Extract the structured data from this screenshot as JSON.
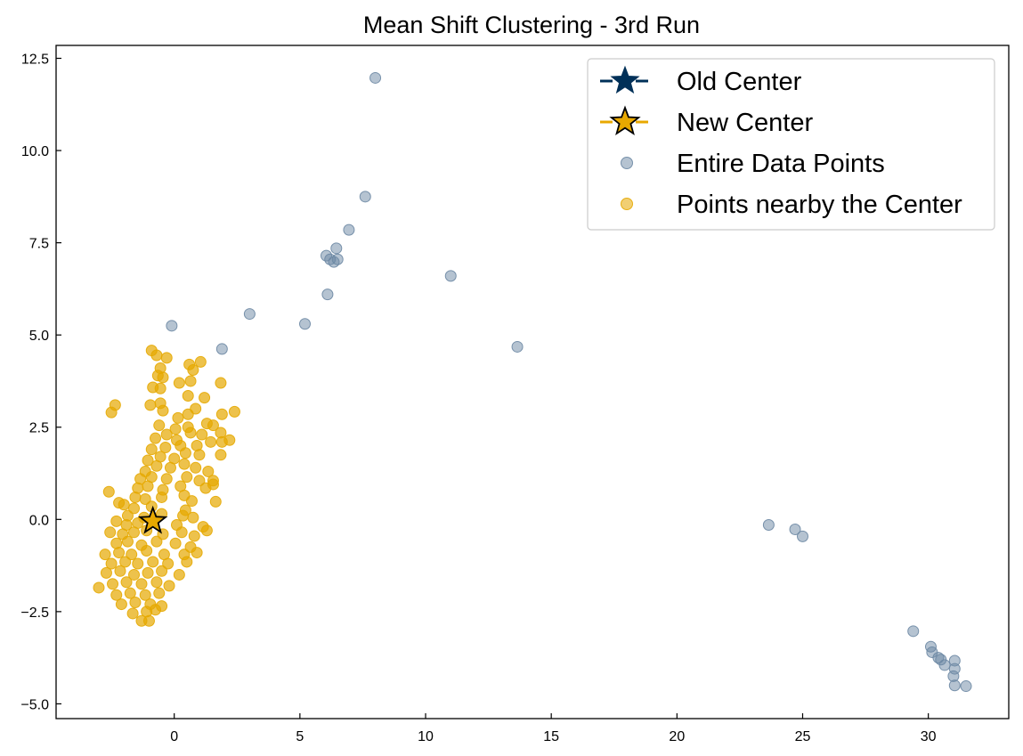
{
  "chart_data": {
    "type": "scatter",
    "title": "Mean Shift Clustering - 3rd Run",
    "xlabel": "",
    "ylabel": "",
    "xlim": [
      -4.7,
      33.2
    ],
    "ylim": [
      -5.4,
      12.85
    ],
    "xticks": [
      0,
      5,
      10,
      15,
      20,
      25,
      30
    ],
    "yticks": [
      -5.0,
      -2.5,
      0.0,
      2.5,
      5.0,
      7.5,
      10.0,
      12.5
    ],
    "xtick_labels": [
      "0",
      "5",
      "10",
      "15",
      "20",
      "25",
      "30"
    ],
    "ytick_labels": [
      "−5.0",
      "−2.5",
      "0.0",
      "2.5",
      "5.0",
      "7.5",
      "10.0",
      "12.5"
    ],
    "grid": false,
    "legend_position": "top-right",
    "colors": {
      "entire": "#6b87a3",
      "nearby": "#e6a800",
      "old_center": "#003058",
      "new_center": "#e8a800",
      "edge": "#000000"
    },
    "legend": [
      {
        "label": "Old Center",
        "marker": "star-line",
        "color": "#003058"
      },
      {
        "label": "New Center",
        "marker": "star-line-outlined",
        "color": "#e8a800"
      },
      {
        "label": "Entire Data Points",
        "marker": "circle",
        "color": "#6b87a3"
      },
      {
        "label": "Points nearby the Center",
        "marker": "circle",
        "color": "#e6a800"
      }
    ],
    "series": [
      {
        "name": "Entire Data Points",
        "points": [
          [
            -0.1,
            5.25
          ],
          [
            1.9,
            4.62
          ],
          [
            3.0,
            5.57
          ],
          [
            5.2,
            5.3
          ],
          [
            6.1,
            6.1
          ],
          [
            6.05,
            7.15
          ],
          [
            6.2,
            7.05
          ],
          [
            6.35,
            6.98
          ],
          [
            6.5,
            7.05
          ],
          [
            6.45,
            7.35
          ],
          [
            6.95,
            7.85
          ],
          [
            7.6,
            8.75
          ],
          [
            8.0,
            11.97
          ],
          [
            11.0,
            6.6
          ],
          [
            13.65,
            4.68
          ],
          [
            23.65,
            -0.15
          ],
          [
            24.7,
            -0.27
          ],
          [
            25.0,
            -0.46
          ],
          [
            29.4,
            -3.03
          ],
          [
            30.1,
            -3.45
          ],
          [
            30.15,
            -3.6
          ],
          [
            30.4,
            -3.75
          ],
          [
            30.5,
            -3.8
          ],
          [
            30.65,
            -3.95
          ],
          [
            31.05,
            -3.83
          ],
          [
            31.05,
            -4.05
          ],
          [
            31.0,
            -4.25
          ],
          [
            31.05,
            -4.5
          ],
          [
            31.5,
            -4.52
          ]
        ]
      },
      {
        "name": "Points nearby the Center",
        "points": [
          [
            -0.9,
            4.58
          ],
          [
            -0.7,
            4.45
          ],
          [
            -0.3,
            4.38
          ],
          [
            -0.55,
            4.1
          ],
          [
            -0.65,
            3.9
          ],
          [
            -0.45,
            3.85
          ],
          [
            0.6,
            4.2
          ],
          [
            0.75,
            4.05
          ],
          [
            1.05,
            4.27
          ],
          [
            -0.85,
            3.58
          ],
          [
            -0.55,
            3.55
          ],
          [
            0.2,
            3.7
          ],
          [
            0.65,
            3.75
          ],
          [
            1.85,
            3.7
          ],
          [
            -0.95,
            3.1
          ],
          [
            -0.55,
            3.15
          ],
          [
            0.55,
            3.35
          ],
          [
            1.2,
            3.3
          ],
          [
            -2.35,
            3.1
          ],
          [
            -2.5,
            2.9
          ],
          [
            -0.45,
            2.95
          ],
          [
            0.15,
            2.75
          ],
          [
            0.55,
            2.85
          ],
          [
            0.85,
            3.0
          ],
          [
            2.4,
            2.92
          ],
          [
            1.9,
            2.85
          ],
          [
            -0.6,
            2.55
          ],
          [
            0.05,
            2.45
          ],
          [
            0.55,
            2.5
          ],
          [
            1.3,
            2.6
          ],
          [
            1.55,
            2.55
          ],
          [
            -0.75,
            2.2
          ],
          [
            -0.3,
            2.3
          ],
          [
            0.1,
            2.15
          ],
          [
            0.65,
            2.35
          ],
          [
            1.1,
            2.3
          ],
          [
            1.85,
            2.35
          ],
          [
            2.2,
            2.15
          ],
          [
            -0.9,
            1.9
          ],
          [
            -0.35,
            1.95
          ],
          [
            0.25,
            2.0
          ],
          [
            0.9,
            2.0
          ],
          [
            1.45,
            2.1
          ],
          [
            1.9,
            2.1
          ],
          [
            -1.05,
            1.6
          ],
          [
            -0.55,
            1.7
          ],
          [
            0.0,
            1.65
          ],
          [
            0.45,
            1.8
          ],
          [
            1.0,
            1.75
          ],
          [
            1.85,
            1.75
          ],
          [
            -1.15,
            1.3
          ],
          [
            -0.7,
            1.45
          ],
          [
            -0.15,
            1.4
          ],
          [
            0.4,
            1.5
          ],
          [
            0.85,
            1.4
          ],
          [
            1.35,
            1.3
          ],
          [
            -1.35,
            1.1
          ],
          [
            -0.9,
            1.15
          ],
          [
            -0.3,
            1.1
          ],
          [
            0.5,
            1.15
          ],
          [
            1.0,
            1.05
          ],
          [
            1.55,
            1.05
          ],
          [
            -1.45,
            0.85
          ],
          [
            -1.05,
            0.9
          ],
          [
            -0.45,
            0.8
          ],
          [
            0.25,
            0.9
          ],
          [
            1.25,
            0.85
          ],
          [
            1.55,
            0.95
          ],
          [
            -2.6,
            0.75
          ],
          [
            -1.55,
            0.6
          ],
          [
            -1.15,
            0.55
          ],
          [
            -0.5,
            0.6
          ],
          [
            0.4,
            0.65
          ],
          [
            0.7,
            0.5
          ],
          [
            1.65,
            0.48
          ],
          [
            -2.2,
            0.45
          ],
          [
            -2.0,
            0.4
          ],
          [
            -1.6,
            0.3
          ],
          [
            -0.9,
            0.35
          ],
          [
            0.45,
            0.25
          ],
          [
            -1.85,
            0.1
          ],
          [
            -1.2,
            0.05
          ],
          [
            -0.5,
            0.15
          ],
          [
            0.35,
            0.1
          ],
          [
            0.75,
            0.05
          ],
          [
            -2.3,
            -0.05
          ],
          [
            -1.9,
            -0.15
          ],
          [
            -1.45,
            -0.1
          ],
          [
            -0.8,
            -0.05
          ],
          [
            0.1,
            -0.15
          ],
          [
            1.15,
            -0.2
          ],
          [
            1.3,
            -0.3
          ],
          [
            -2.55,
            -0.35
          ],
          [
            -2.05,
            -0.4
          ],
          [
            -1.6,
            -0.35
          ],
          [
            -1.1,
            -0.3
          ],
          [
            -0.45,
            -0.4
          ],
          [
            0.3,
            -0.35
          ],
          [
            0.8,
            -0.45
          ],
          [
            -2.3,
            -0.65
          ],
          [
            -1.85,
            -0.6
          ],
          [
            -1.3,
            -0.7
          ],
          [
            -0.7,
            -0.6
          ],
          [
            0.05,
            -0.65
          ],
          [
            0.65,
            -0.75
          ],
          [
            -2.75,
            -0.95
          ],
          [
            -2.2,
            -0.9
          ],
          [
            -1.7,
            -0.95
          ],
          [
            -1.1,
            -0.85
          ],
          [
            -0.4,
            -0.95
          ],
          [
            0.4,
            -0.95
          ],
          [
            0.9,
            -0.9
          ],
          [
            -2.5,
            -1.2
          ],
          [
            -1.95,
            -1.15
          ],
          [
            -1.45,
            -1.2
          ],
          [
            -0.85,
            -1.15
          ],
          [
            -0.25,
            -1.2
          ],
          [
            0.5,
            -1.15
          ],
          [
            -2.7,
            -1.45
          ],
          [
            -2.15,
            -1.4
          ],
          [
            -1.6,
            -1.5
          ],
          [
            -1.05,
            -1.45
          ],
          [
            -0.5,
            -1.4
          ],
          [
            0.2,
            -1.5
          ],
          [
            -3.0,
            -1.85
          ],
          [
            -2.45,
            -1.75
          ],
          [
            -1.9,
            -1.7
          ],
          [
            -1.3,
            -1.75
          ],
          [
            -0.7,
            -1.7
          ],
          [
            -0.2,
            -1.8
          ],
          [
            -2.3,
            -2.05
          ],
          [
            -1.75,
            -2.0
          ],
          [
            -1.15,
            -2.05
          ],
          [
            -0.6,
            -2.0
          ],
          [
            -2.1,
            -2.3
          ],
          [
            -1.55,
            -2.25
          ],
          [
            -0.95,
            -2.3
          ],
          [
            -0.5,
            -2.35
          ],
          [
            -1.65,
            -2.55
          ],
          [
            -1.1,
            -2.5
          ],
          [
            -0.75,
            -2.45
          ],
          [
            -1.3,
            -2.75
          ],
          [
            -1.0,
            -2.75
          ]
        ]
      }
    ],
    "old_center": [
      -0.85,
      -0.05
    ],
    "new_center": [
      -0.85,
      -0.05
    ]
  }
}
